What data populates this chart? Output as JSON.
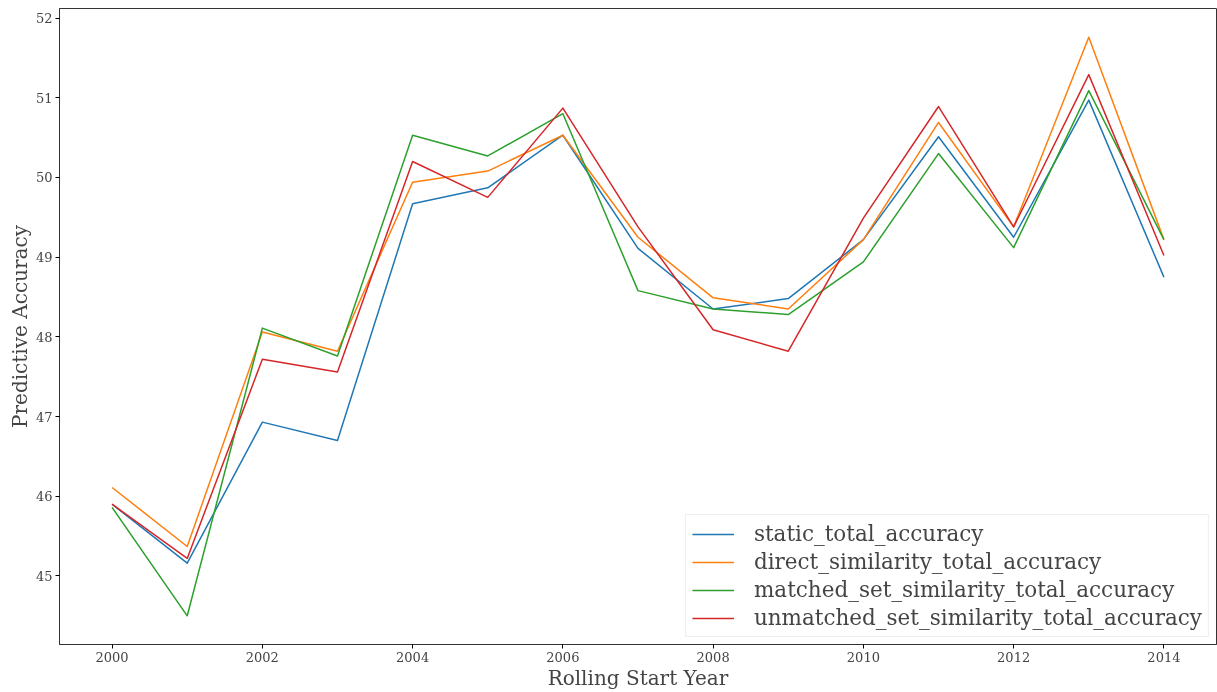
{
  "chart_data": {
    "type": "line",
    "xlabel": "Rolling Start Year",
    "ylabel": "Predictive Accuracy",
    "x": [
      2000,
      2001,
      2002,
      2003,
      2004,
      2005,
      2006,
      2007,
      2008,
      2009,
      2010,
      2011,
      2012,
      2013,
      2014
    ],
    "series": [
      {
        "name": "static_total_accuracy",
        "color": "#1f77b4",
        "values": [
          45.9,
          45.16,
          46.93,
          46.7,
          49.67,
          49.87,
          50.53,
          49.11,
          48.35,
          48.48,
          49.22,
          50.51,
          49.25,
          50.97,
          48.75
        ]
      },
      {
        "name": "direct_similarity_total_accuracy",
        "color": "#ff7f0e",
        "values": [
          46.11,
          45.37,
          48.06,
          47.82,
          49.94,
          50.08,
          50.53,
          49.25,
          48.49,
          48.35,
          49.22,
          50.69,
          49.38,
          51.76,
          49.22
        ]
      },
      {
        "name": "matched_set_similarity_total_accuracy",
        "color": "#2ca02c",
        "values": [
          45.86,
          44.5,
          48.11,
          47.76,
          50.53,
          50.27,
          50.8,
          48.58,
          48.35,
          48.28,
          48.94,
          50.3,
          49.12,
          51.09,
          49.22
        ]
      },
      {
        "name": "unmatched_set_similarity_total_accuracy",
        "color": "#d62728",
        "values": [
          45.9,
          45.22,
          47.72,
          47.56,
          50.2,
          49.75,
          50.87,
          49.38,
          48.09,
          47.82,
          49.49,
          50.89,
          49.38,
          51.29,
          49.02
        ]
      }
    ],
    "xlim": [
      1999.3,
      2014.7
    ],
    "ylim": [
      44.14,
      52.12
    ],
    "xticks": [
      2000,
      2002,
      2004,
      2006,
      2008,
      2010,
      2012,
      2014
    ],
    "yticks": [
      45,
      46,
      47,
      48,
      49,
      50,
      51,
      52
    ],
    "legend": "bottom right",
    "grid": false,
    "line_style": "solid"
  }
}
